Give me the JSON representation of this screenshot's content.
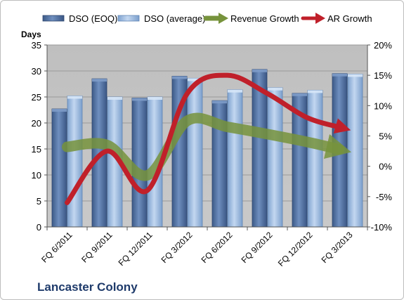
{
  "chart_data": {
    "type": "bar",
    "company": "Lancaster Colony",
    "left_axis_title": "Days",
    "categories": [
      "FQ 6/2011",
      "FQ 9/2011",
      "FQ 12/2011",
      "FQ 3/2012",
      "FQ 6/2012",
      "FQ 9/2012",
      "FQ 12/2012",
      "FQ 3/2013"
    ],
    "left_axis": {
      "min": 0,
      "max": 35,
      "ticks": [
        0,
        5,
        10,
        15,
        20,
        25,
        30,
        35
      ]
    },
    "right_axis": {
      "min": -10,
      "max": 20,
      "ticks": [
        "-10%",
        "-5%",
        "0%",
        "5%",
        "10%",
        "15%",
        "20%"
      ]
    },
    "series": [
      {
        "name": "DSO (EOQ)",
        "type": "bar",
        "axis": "left",
        "color": "#4f6f9f",
        "values": [
          22.7,
          28.5,
          24.8,
          29.0,
          24.3,
          30.3,
          25.7,
          29.5
        ]
      },
      {
        "name": "DSO (average)",
        "type": "bar",
        "axis": "left",
        "color": "#9dbbe0",
        "values": [
          25.2,
          25.0,
          25.0,
          28.6,
          26.4,
          26.8,
          26.3,
          29.4
        ]
      },
      {
        "name": "Revenue Growth",
        "type": "line",
        "axis": "right",
        "unit": "%",
        "color": "#77933c",
        "values": [
          3.2,
          3.5,
          -1.5,
          7.5,
          6.5,
          5.3,
          4.0,
          2.8
        ]
      },
      {
        "name": "AR Growth",
        "type": "line",
        "axis": "right",
        "unit": "%",
        "color": "#c0202a",
        "values": [
          -6.0,
          2.5,
          -4.0,
          12.0,
          15.0,
          12.0,
          8.0,
          6.3
        ]
      }
    ],
    "grid": true,
    "legend_position": "top"
  }
}
